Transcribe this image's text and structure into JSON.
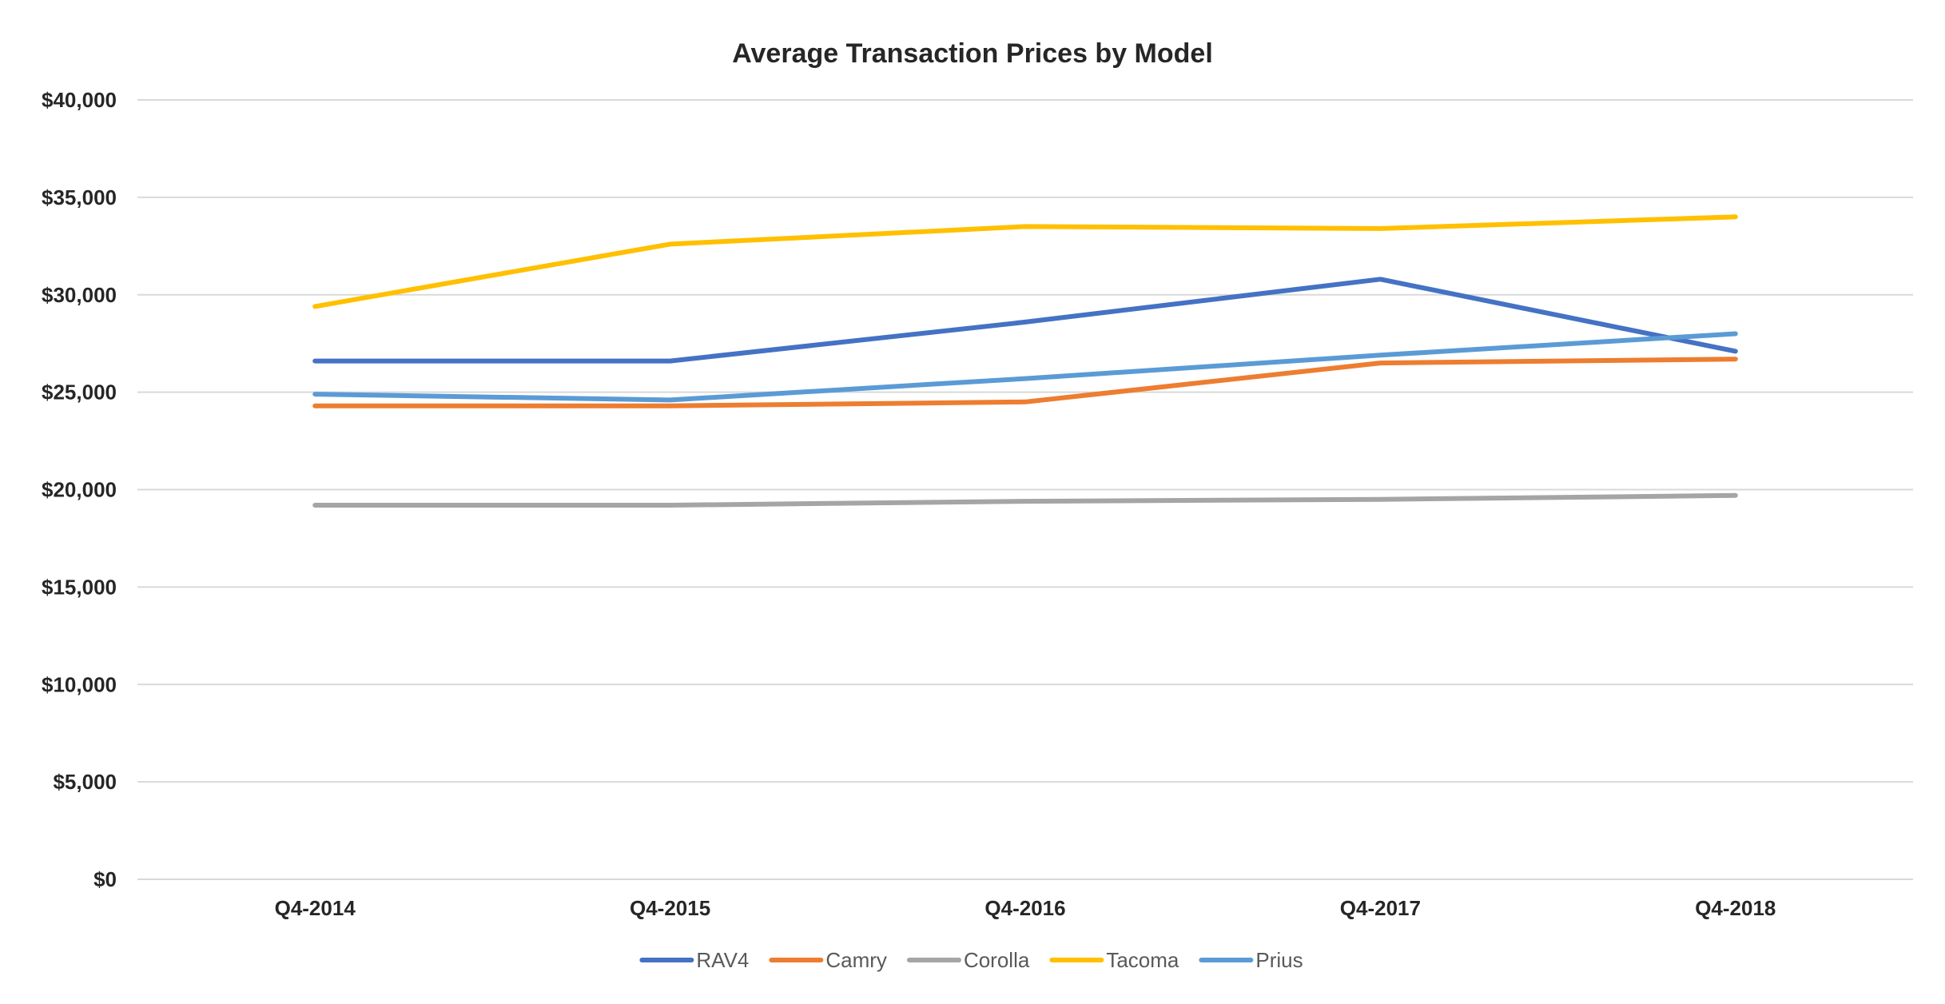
{
  "chart_data": {
    "type": "line",
    "title": "Average Transaction Prices by Model",
    "xlabel": "",
    "ylabel": "",
    "categories": [
      "Q4-2014",
      "Q4-2015",
      "Q4-2016",
      "Q4-2017",
      "Q4-2018"
    ],
    "ylim": [
      0,
      40000
    ],
    "yticks": [
      0,
      5000,
      10000,
      15000,
      20000,
      25000,
      30000,
      35000,
      40000
    ],
    "ytick_labels": [
      "$0",
      "$5,000",
      "$10,000",
      "$15,000",
      "$20,000",
      "$25,000",
      "$30,000",
      "$35,000",
      "$40,000"
    ],
    "grid": true,
    "legend_position": "bottom",
    "series": [
      {
        "name": "RAV4",
        "color": "#4472c4",
        "values": [
          26600,
          26600,
          28600,
          30800,
          27100
        ]
      },
      {
        "name": "Camry",
        "color": "#ed7d31",
        "values": [
          24300,
          24300,
          24500,
          26500,
          26700
        ]
      },
      {
        "name": "Corolla",
        "color": "#a5a5a5",
        "values": [
          19200,
          19200,
          19400,
          19500,
          19700
        ]
      },
      {
        "name": "Tacoma",
        "color": "#ffc000",
        "values": [
          29400,
          32600,
          33500,
          33400,
          34000
        ]
      },
      {
        "name": "Prius",
        "color": "#5b9bd5",
        "values": [
          24900,
          24600,
          25700,
          26900,
          28000
        ]
      }
    ]
  }
}
